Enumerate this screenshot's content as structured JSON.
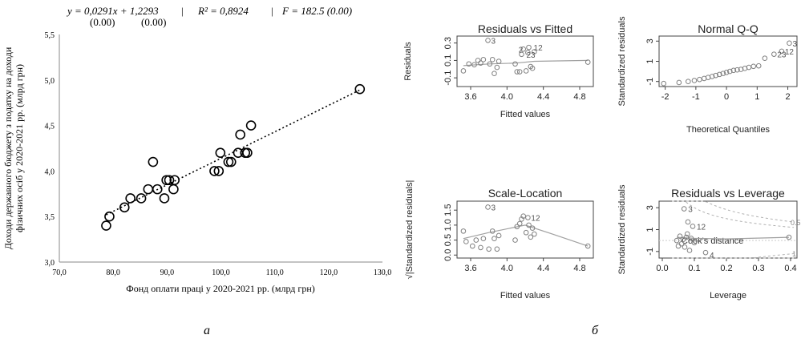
{
  "equation": {
    "main": "y = 0,0291x + 1,2293",
    "sep1": "|",
    "r2": "R² = 0,8924",
    "sep2": "|",
    "f": "F = 182.5 (0.00)",
    "p_coef": "(0.00)",
    "p_const": "(0.00)"
  },
  "captions": {
    "a": "а",
    "b": "б"
  },
  "colors": {
    "points": "#000000",
    "trend": "#000000",
    "diag_points": "#808080",
    "diag_line": "#a0a0a0",
    "cooks": "#b0b0b0"
  },
  "chart_data": [
    {
      "type": "scatter",
      "xlabel": "Фонд оплати праці у 2020-2021 рр. (млрд грн)",
      "ylabel_line1": "Доходи державного бюджету з податку на доходи",
      "ylabel_line2": "фізичних осіб у 2020-2021 рр. (млрд грн)",
      "xlim": [
        70,
        130
      ],
      "ylim": [
        3.0,
        5.5
      ],
      "xticks": [
        "70,0",
        "80,0",
        "90,0",
        "100,0",
        "110,0",
        "120,0",
        "130,0"
      ],
      "yticks": [
        "3,0",
        "3,5",
        "4,0",
        "4,5",
        "5,0",
        "5,5"
      ],
      "trendline": {
        "slope": 0.0291,
        "intercept": 1.2293,
        "style": "dotted"
      },
      "points": [
        [
          78.7,
          3.4
        ],
        [
          79.3,
          3.5
        ],
        [
          82.1,
          3.6
        ],
        [
          83.2,
          3.7
        ],
        [
          85.2,
          3.7
        ],
        [
          86.5,
          3.8
        ],
        [
          87.4,
          4.1
        ],
        [
          88.2,
          3.8
        ],
        [
          89.5,
          3.7
        ],
        [
          89.9,
          3.9
        ],
        [
          90.4,
          3.9
        ],
        [
          91.2,
          3.8
        ],
        [
          91.4,
          3.9
        ],
        [
          98.8,
          4.0
        ],
        [
          99.6,
          4.0
        ],
        [
          99.9,
          4.2
        ],
        [
          101.4,
          4.1
        ],
        [
          101.9,
          4.1
        ],
        [
          103.2,
          4.2
        ],
        [
          103.6,
          4.4
        ],
        [
          104.5,
          4.2
        ],
        [
          104.9,
          4.2
        ],
        [
          105.6,
          4.5
        ],
        [
          125.8,
          4.9
        ]
      ]
    },
    {
      "type": "scatter",
      "title": "Residuals vs Fitted",
      "xlabel": "Fitted values",
      "ylabel": "Residuals",
      "xlim": [
        3.45,
        4.95
      ],
      "ylim": [
        -0.2,
        0.38
      ],
      "xticks": [
        "3.6",
        "4.0",
        "4.4",
        "4.8"
      ],
      "yticks": [
        "-0.1",
        "0.1",
        "0.3"
      ],
      "labels": [
        "3",
        "12",
        "2",
        "23"
      ],
      "points": [
        [
          3.52,
          -0.02
        ],
        [
          3.58,
          0.06
        ],
        [
          3.64,
          0.05
        ],
        [
          3.68,
          0.1
        ],
        [
          3.71,
          0.07
        ],
        [
          3.74,
          0.11
        ],
        [
          3.79,
          0.33
        ],
        [
          3.81,
          0.06
        ],
        [
          3.84,
          0.11
        ],
        [
          3.86,
          -0.05
        ],
        [
          3.89,
          0.02
        ],
        [
          3.91,
          0.09
        ],
        [
          4.09,
          0.06
        ],
        [
          4.11,
          -0.03
        ],
        [
          4.14,
          -0.03
        ],
        [
          4.16,
          0.17
        ],
        [
          4.18,
          0.23
        ],
        [
          4.21,
          -0.02
        ],
        [
          4.23,
          0.19
        ],
        [
          4.24,
          0.25
        ],
        [
          4.26,
          0.03
        ],
        [
          4.28,
          0.01
        ],
        [
          4.3,
          0.2
        ],
        [
          4.89,
          0.08
        ]
      ],
      "smooth": [
        [
          3.52,
          0.04
        ],
        [
          3.8,
          0.06
        ],
        [
          4.1,
          0.07
        ],
        [
          4.3,
          0.09
        ],
        [
          4.89,
          0.1
        ]
      ]
    },
    {
      "type": "scatter",
      "title": "Normal Q-Q",
      "xlabel": "Theoretical Quantiles",
      "ylabel": "Standardized residuals",
      "xlim": [
        -2.2,
        2.3
      ],
      "ylim": [
        -1.5,
        3.5
      ],
      "xticks": [
        "-2",
        "-1",
        "0",
        "1",
        "2"
      ],
      "yticks": [
        "-1",
        "1",
        "3"
      ],
      "labels": [
        "3",
        "12",
        "23"
      ],
      "points": [
        [
          -2.05,
          -1.2
        ],
        [
          -1.55,
          -1.1
        ],
        [
          -1.25,
          -1.0
        ],
        [
          -1.05,
          -0.9
        ],
        [
          -0.88,
          -0.8
        ],
        [
          -0.73,
          -0.7
        ],
        [
          -0.6,
          -0.6
        ],
        [
          -0.47,
          -0.5
        ],
        [
          -0.35,
          -0.4
        ],
        [
          -0.23,
          -0.3
        ],
        [
          -0.11,
          -0.2
        ],
        [
          0.0,
          -0.1
        ],
        [
          0.11,
          0.0
        ],
        [
          0.23,
          0.1
        ],
        [
          0.35,
          0.15
        ],
        [
          0.47,
          0.2
        ],
        [
          0.6,
          0.3
        ],
        [
          0.73,
          0.4
        ],
        [
          0.88,
          0.5
        ],
        [
          1.05,
          0.55
        ],
        [
          1.25,
          1.3
        ],
        [
          1.55,
          1.7
        ],
        [
          1.8,
          2.0
        ],
        [
          2.05,
          2.8
        ]
      ]
    },
    {
      "type": "scatter",
      "title": "Scale-Location",
      "xlabel": "Fitted values",
      "ylabel": "√|Standardized residuals|",
      "xlim": [
        3.45,
        4.95
      ],
      "ylim": [
        -0.1,
        1.8
      ],
      "xticks": [
        "3.6",
        "4.0",
        "4.4",
        "4.8"
      ],
      "yticks": [
        "0.0",
        "0.5",
        "1.0",
        "1.5"
      ],
      "labels": [
        "3",
        "12"
      ],
      "points": [
        [
          3.52,
          0.8
        ],
        [
          3.55,
          0.45
        ],
        [
          3.62,
          0.3
        ],
        [
          3.66,
          0.5
        ],
        [
          3.71,
          0.25
        ],
        [
          3.74,
          0.55
        ],
        [
          3.79,
          1.6
        ],
        [
          3.8,
          0.2
        ],
        [
          3.84,
          0.8
        ],
        [
          3.86,
          0.55
        ],
        [
          3.89,
          0.2
        ],
        [
          3.91,
          0.65
        ],
        [
          4.09,
          0.5
        ],
        [
          4.11,
          0.95
        ],
        [
          4.14,
          1.05
        ],
        [
          4.16,
          1.2
        ],
        [
          4.18,
          1.3
        ],
        [
          4.21,
          0.75
        ],
        [
          4.23,
          1.25
        ],
        [
          4.24,
          1.0
        ],
        [
          4.26,
          0.6
        ],
        [
          4.28,
          0.9
        ],
        [
          4.3,
          0.7
        ],
        [
          4.89,
          0.3
        ]
      ],
      "smooth": [
        [
          3.52,
          0.55
        ],
        [
          3.8,
          0.75
        ],
        [
          4.2,
          1.0
        ],
        [
          4.5,
          0.7
        ],
        [
          4.89,
          0.3
        ]
      ]
    },
    {
      "type": "scatter",
      "title": "Residuals vs Leverage",
      "xlabel": "Leverage",
      "ylabel": "Standardized residuals",
      "xlim": [
        -0.01,
        0.42
      ],
      "ylim": [
        -1.6,
        3.6
      ],
      "xticks": [
        "0.0",
        "0.1",
        "0.2",
        "0.3",
        "0.4"
      ],
      "yticks": [
        "-1",
        "1",
        "3"
      ],
      "labels": [
        "3",
        "12",
        "4"
      ],
      "cooks_label": "Cook's distance",
      "cooks_levels": [
        "0.5",
        "1"
      ],
      "points": [
        [
          0.045,
          0.0
        ],
        [
          0.05,
          -0.5
        ],
        [
          0.055,
          0.4
        ],
        [
          0.06,
          -0.3
        ],
        [
          0.065,
          0.1
        ],
        [
          0.068,
          2.9
        ],
        [
          0.07,
          -0.6
        ],
        [
          0.075,
          0.3
        ],
        [
          0.078,
          0.6
        ],
        [
          0.08,
          1.7
        ],
        [
          0.085,
          -0.9
        ],
        [
          0.09,
          0.2
        ],
        [
          0.095,
          1.3
        ],
        [
          0.1,
          -0.2
        ],
        [
          0.135,
          -1.1
        ],
        [
          0.395,
          0.3
        ]
      ],
      "smooth": [
        [
          0.045,
          0.3
        ],
        [
          0.1,
          0.2
        ],
        [
          0.2,
          0.15
        ],
        [
          0.395,
          0.3
        ]
      ]
    }
  ]
}
